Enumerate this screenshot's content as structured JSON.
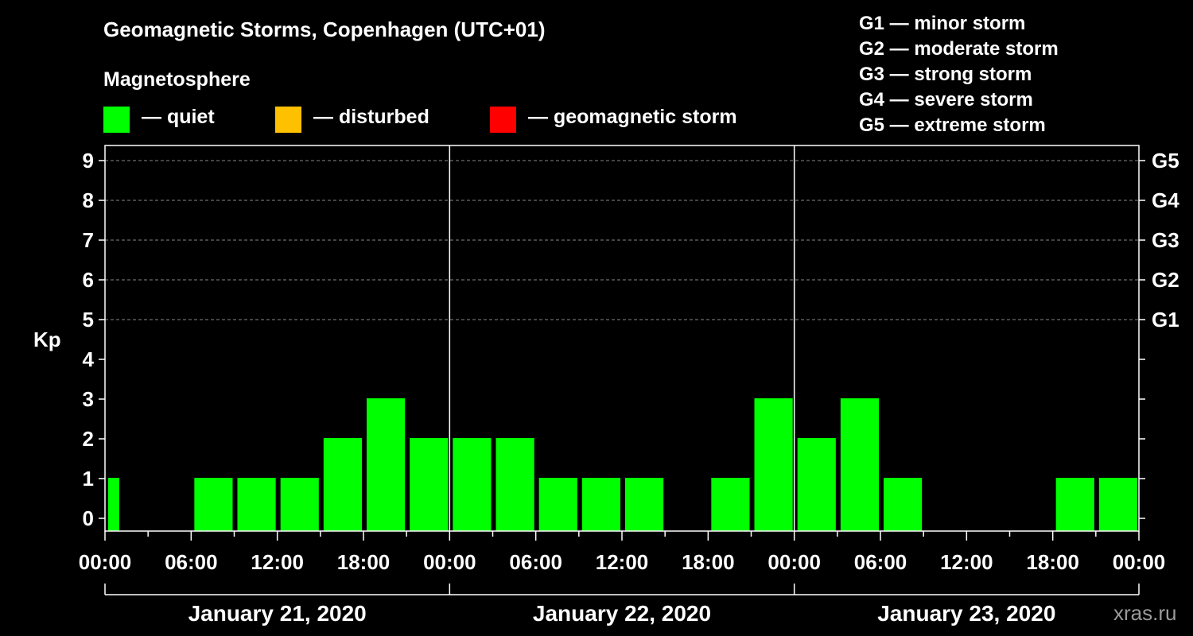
{
  "title": "Geomagnetic Storms, Copenhagen (UTC+01)",
  "magnetosphere_label": "Magnetosphere",
  "legend": [
    {
      "label": "— quiet",
      "color": "#00ff00"
    },
    {
      "label": "— disturbed",
      "color": "#ffc000"
    },
    {
      "label": "— geomagnetic storm",
      "color": "#ff0000"
    }
  ],
  "g_legend": [
    "G1 — minor storm",
    "G2 — moderate storm",
    "G3 — strong storm",
    "G4 — severe storm",
    "G5 — extreme storm"
  ],
  "watermark": "xras.ru",
  "chart_data": {
    "type": "bar",
    "ylabel": "Kp",
    "ylim": [
      0,
      9
    ],
    "yticks": [
      "0",
      "1",
      "2",
      "3",
      "4",
      "5",
      "6",
      "7",
      "8",
      "9"
    ],
    "right_ticks": [
      {
        "kp": 5,
        "label": "G1"
      },
      {
        "kp": 6,
        "label": "G2"
      },
      {
        "kp": 7,
        "label": "G3"
      },
      {
        "kp": 8,
        "label": "G4"
      },
      {
        "kp": 9,
        "label": "G5"
      }
    ],
    "x_tick_labels": [
      "00:00",
      "06:00",
      "12:00",
      "18:00",
      "00:00",
      "06:00",
      "12:00",
      "18:00",
      "00:00",
      "06:00",
      "12:00",
      "18:00",
      "00:00"
    ],
    "days": [
      "January 21, 2020",
      "January 22, 2020",
      "January 23, 2020"
    ],
    "bar_color": "#00ff00",
    "values": [
      1,
      0,
      1,
      1,
      1,
      2,
      3,
      2,
      2,
      2,
      1,
      1,
      1,
      0,
      1,
      3,
      2,
      3,
      1,
      0,
      0,
      0,
      1,
      1
    ]
  }
}
